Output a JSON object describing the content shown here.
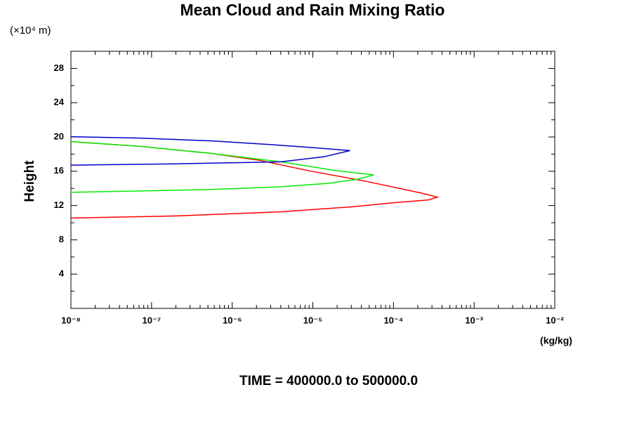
{
  "chart_data": {
    "type": "line",
    "title": "Mean Cloud and Rain Mixing Ratio",
    "y_unit_label": "(×10⁴ m)",
    "ylabel": "Height",
    "xlabel": "(kg/kg)",
    "subtitle": "TIME = 400000.0 to 500000.0",
    "xscale": "log",
    "log_minor_ticks": true,
    "xlim": [
      1e-08,
      0.01
    ],
    "xticks": [
      {
        "value": 1e-08,
        "label": "10⁻⁸"
      },
      {
        "value": 1e-07,
        "label": "10⁻⁷"
      },
      {
        "value": 1e-06,
        "label": "10⁻⁶"
      },
      {
        "value": 1e-05,
        "label": "10⁻⁵"
      },
      {
        "value": 0.0001,
        "label": "10⁻⁴"
      },
      {
        "value": 0.001,
        "label": "10⁻³"
      },
      {
        "value": 0.01,
        "label": "10⁻²"
      }
    ],
    "ylim": [
      0,
      30
    ],
    "yticks": [
      4,
      8,
      12,
      16,
      20,
      24,
      28
    ],
    "yminorticks": [
      2,
      6,
      10,
      14,
      18,
      22,
      26,
      30
    ],
    "grid": false,
    "series": [
      {
        "color": "#ff0000",
        "x": [
          1e-08,
          2e-07,
          4e-06,
          3e-05,
          0.0001,
          0.00027,
          0.00035,
          0.00022,
          4.5e-05,
          8.9e-06,
          2.2e-06,
          5.4e-07,
          7.3e-08,
          1e-08
        ],
        "values": [
          10.54,
          10.79,
          11.27,
          11.84,
          12.33,
          12.65,
          12.98,
          13.46,
          14.84,
          16.06,
          17.27,
          18.09,
          18.9,
          19.46
        ]
      },
      {
        "color": "#00ee00",
        "x": [
          1e-08,
          5.4e-07,
          4e-06,
          1.6e-05,
          3.6e-05,
          5.7e-05,
          2e-05,
          4e-06,
          5.4e-07,
          7.3e-08,
          1e-08
        ],
        "values": [
          13.54,
          13.87,
          14.19,
          14.6,
          15.08,
          15.57,
          16.06,
          17.1,
          18.09,
          18.9,
          19.46
        ]
      },
      {
        "color": "#0000cc",
        "x": [
          1e-08,
          2e-07,
          4e-06,
          1.35e-05,
          2.9e-05,
          1.1e-05,
          2.7e-06,
          5.4e-07,
          7.3e-08,
          1e-08
        ],
        "values": [
          16.71,
          16.87,
          17.1,
          17.68,
          18.41,
          18.73,
          19.14,
          19.55,
          19.87,
          20.03
        ]
      }
    ]
  }
}
